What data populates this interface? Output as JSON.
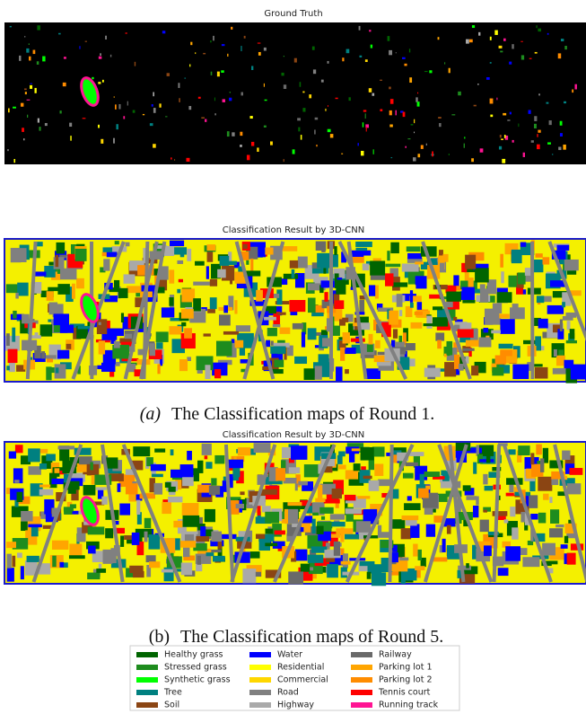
{
  "panels": [
    {
      "title": "Ground Truth"
    },
    {
      "title": "Classification Result by 3D-CNN"
    },
    {
      "title": "Classification Result by 3D-CNN"
    }
  ],
  "captions": [
    {
      "label": "(a)",
      "text": "The Classification maps of Round 1."
    },
    {
      "label": "(b)",
      "text": "The Classification maps of Round 5."
    }
  ],
  "legend": [
    {
      "label": "Healthy grass",
      "color": "#006400"
    },
    {
      "label": "Stressed grass",
      "color": "#1e8c1e"
    },
    {
      "label": "Synthetic grass",
      "color": "#00ff00"
    },
    {
      "label": "Tree",
      "color": "#008080"
    },
    {
      "label": "Soil",
      "color": "#8b4513"
    },
    {
      "label": "Water",
      "color": "#0000ff"
    },
    {
      "label": "Residential",
      "color": "#ffff00"
    },
    {
      "label": "Commercial",
      "color": "#ffd700"
    },
    {
      "label": "Road",
      "color": "#808080"
    },
    {
      "label": "Highway",
      "color": "#a9a9a9"
    },
    {
      "label": "Railway",
      "color": "#696969"
    },
    {
      "label": "Parking lot 1",
      "color": "#ffa500"
    },
    {
      "label": "Parking lot 2",
      "color": "#ff8c00"
    },
    {
      "label": "Tennis court",
      "color": "#ff0000"
    },
    {
      "label": "Running track",
      "color": "#ff1493"
    }
  ]
}
